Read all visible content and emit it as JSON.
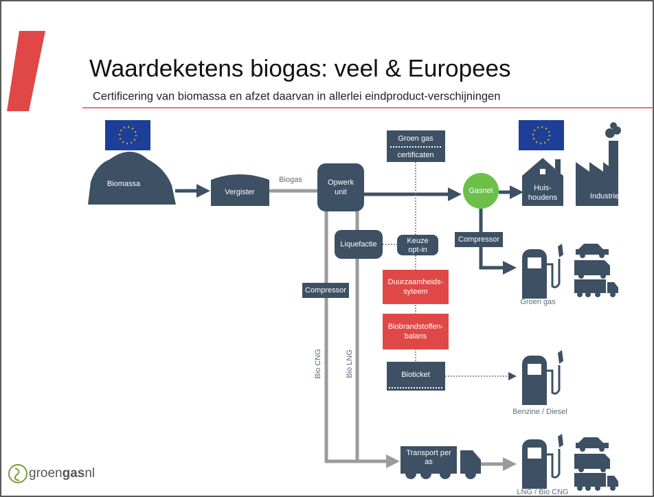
{
  "header": {
    "title": "Waardeketens biogas: veel & Europees",
    "subtitle": "Certificering van biomassa en afzet daarvan in allerlei eindproduct-verschijningen"
  },
  "nodes": {
    "biomassa": [
      "Biomassa"
    ],
    "vergister": [
      "Vergister"
    ],
    "opwerk": [
      "Opwerk",
      "unit"
    ],
    "certificaten": [
      "Groen gas",
      "certificaten"
    ],
    "gasnet": [
      "Gasnet"
    ],
    "huishoudens": [
      "Huis-",
      "houdens"
    ],
    "industrie": [
      "Industrie"
    ],
    "compressor_right": [
      "Compressor"
    ],
    "liquefactie": [
      "Liquefactie"
    ],
    "keuze": [
      "Keuze",
      "opt-in"
    ],
    "compressor_left": [
      "Compressor"
    ],
    "duurzaamheid": [
      "Duurzaamheids-",
      "syteem"
    ],
    "biobrandstoffen": [
      "Biobrandstoffen-",
      "balans"
    ],
    "bioticket": [
      "Bioticket"
    ],
    "transport": [
      "Transport per",
      "as"
    ]
  },
  "edge_labels": {
    "biogas": "Biogas",
    "groen_gas": "Groen gas",
    "bio_cng": "Bio CNG",
    "bio_lng": "Bio LNG"
  },
  "outputs": {
    "groen_gas": "Groen gas",
    "benzine_diesel": "Benzine / Diesel",
    "lng_bio_cng": "LNG / Bio CNG"
  },
  "logo": {
    "prefix": "groen",
    "bold": "gas",
    "suffix": "nl"
  }
}
